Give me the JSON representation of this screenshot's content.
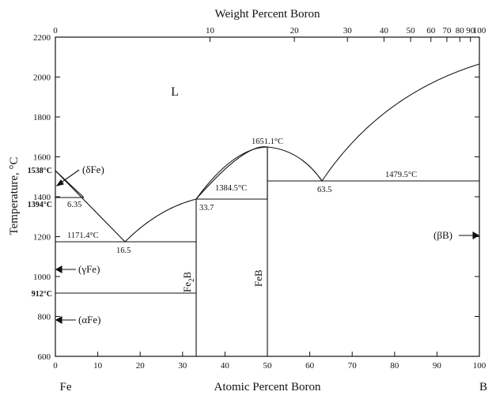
{
  "chart_data": {
    "type": "diagram",
    "top_axis_title": "Weight Percent Boron",
    "bottom_axis_title": "Atomic Percent Boron",
    "y_axis_title": "Temperature, °C",
    "y_range": [
      600,
      2200
    ],
    "x_range": [
      0,
      100
    ],
    "y_ticks": [
      "600",
      "800",
      "1000",
      "1200",
      "1400",
      "1600",
      "1800",
      "2000",
      "2200"
    ],
    "x_ticks": [
      "0",
      "10",
      "20",
      "30",
      "40",
      "50",
      "60",
      "70",
      "80",
      "90",
      "100"
    ],
    "top_ticks": [
      "0",
      "10",
      "20",
      "30",
      "40",
      "50",
      "60",
      "70",
      "80",
      "90",
      "100"
    ],
    "end_left": "Fe",
    "end_right": "B",
    "liquid_label": "L",
    "phases": {
      "delta_fe": "(δFe)",
      "gamma_fe": "(γFe)",
      "alpha_fe": "(αFe)",
      "beta_b": "(βB)",
      "fe2b_main": "Fe",
      "fe2b_sub": "2",
      "fe2b_tail": "B",
      "feb": "FeB"
    },
    "points": {
      "t1538": "1538°C",
      "t1394": "1394°C",
      "t912": "912°C",
      "t1171": "1171.4°C",
      "t1384": "1384.5°C",
      "t1651": "1651.1°C",
      "t1479": "1479.5°C",
      "c635": "6.35",
      "c165": "16.5",
      "c337": "33.7",
      "c635b": "63.5"
    }
  }
}
